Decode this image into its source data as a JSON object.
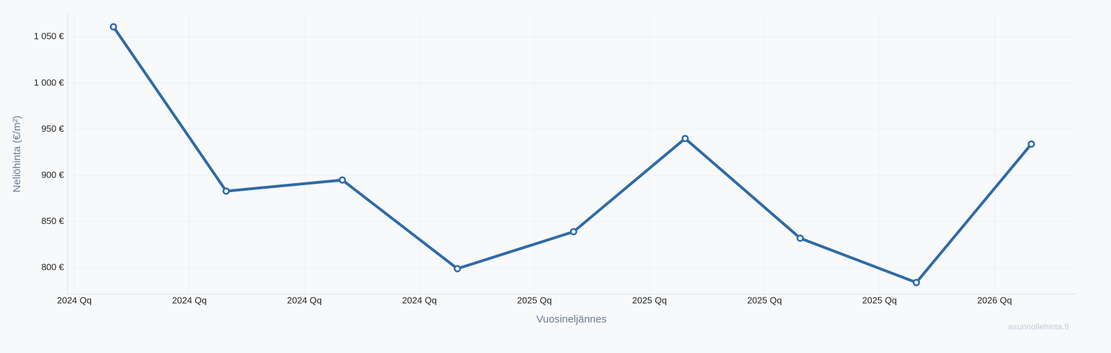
{
  "chart_data": {
    "type": "line",
    "x_label": "Vuosineljännes",
    "y_label": "Neliöhinta (€/m²)",
    "watermark": "asunnollehinta.fi",
    "x": [
      0.34,
      1.32,
      2.33,
      3.33,
      4.34,
      5.31,
      6.31,
      7.32,
      8.32
    ],
    "values": [
      1061,
      883,
      895,
      799,
      839,
      940,
      832,
      784,
      934
    ],
    "color": "#2f6aa6",
    "xlim": [
      -0.06,
      8.71
    ],
    "xticks": [
      {
        "value": 0,
        "label": "2024 Qq"
      },
      {
        "value": 1,
        "label": "2024 Qq"
      },
      {
        "value": 2,
        "label": "2024 Qq"
      },
      {
        "value": 3,
        "label": "2024 Qq"
      },
      {
        "value": 4,
        "label": "2025 Qq"
      },
      {
        "value": 5,
        "label": "2025 Qq"
      },
      {
        "value": 6,
        "label": "2025 Qq"
      },
      {
        "value": 7,
        "label": "2025 Qq"
      },
      {
        "value": 8,
        "label": "2026 Qq"
      }
    ],
    "ylim": [
      771.5,
      1075
    ],
    "yticks": [
      {
        "value": 800,
        "label": "800 €"
      },
      {
        "value": 850,
        "label": "850 €"
      },
      {
        "value": 900,
        "label": "900 €"
      },
      {
        "value": 950,
        "label": "950 €"
      },
      {
        "value": 1000,
        "label": "1 000 €"
      },
      {
        "value": 1050,
        "label": "1 050 €"
      }
    ],
    "grid": true
  }
}
